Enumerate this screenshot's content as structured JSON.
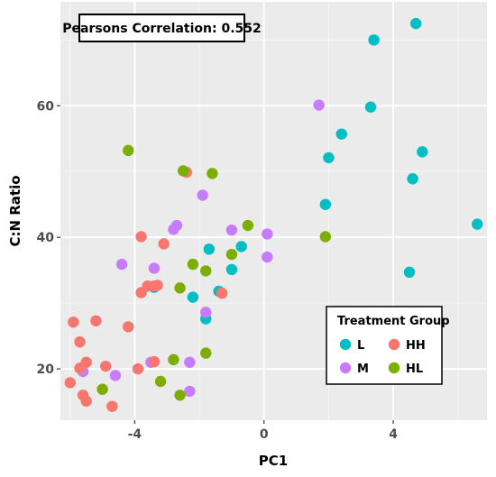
{
  "chart_data": {
    "type": "scatter",
    "annotation": "Pearsons Correlation: 0.552",
    "xlabel": "PC1",
    "ylabel": "C:N Ratio",
    "xlim": [
      -6.3,
      6.9
    ],
    "ylim": [
      12.2,
      75.8
    ],
    "x_ticks": [
      -4,
      0,
      4
    ],
    "x_tick_labels": [
      "-4",
      "0",
      "4"
    ],
    "y_ticks": [
      20,
      40,
      60
    ],
    "y_tick_labels": [
      "20",
      "40",
      "60"
    ],
    "grid": true,
    "legend": {
      "title": "Treatment Group",
      "placement": "bottom-right",
      "entries": [
        {
          "key": "L",
          "label": "L",
          "color": "#00BFC4"
        },
        {
          "key": "M",
          "label": "M",
          "color": "#C77CFF"
        },
        {
          "key": "HH",
          "label": "HH",
          "color": "#F8766D"
        },
        {
          "key": "HL",
          "label": "HL",
          "color": "#7CAE00"
        }
      ]
    },
    "series": [
      {
        "name": "L",
        "color": "#00BFC4",
        "points": [
          [
            4.7,
            72.5
          ],
          [
            3.4,
            70.0
          ],
          [
            3.3,
            59.8
          ],
          [
            2.4,
            55.7
          ],
          [
            2.0,
            52.1
          ],
          [
            4.9,
            53.0
          ],
          [
            4.6,
            48.9
          ],
          [
            1.9,
            45.0
          ],
          [
            6.6,
            42.0
          ],
          [
            4.5,
            34.7
          ],
          [
            -1.7,
            38.2
          ],
          [
            -0.7,
            38.6
          ],
          [
            -1.0,
            35.1
          ],
          [
            -3.4,
            32.4
          ],
          [
            -1.4,
            31.8
          ],
          [
            -2.2,
            30.9
          ],
          [
            -1.8,
            27.6
          ]
        ]
      },
      {
        "name": "M",
        "color": "#C77CFF",
        "points": [
          [
            1.7,
            60.1
          ],
          [
            -1.9,
            46.4
          ],
          [
            -2.8,
            41.2
          ],
          [
            -2.7,
            41.8
          ],
          [
            -1.0,
            41.1
          ],
          [
            0.1,
            40.5
          ],
          [
            0.1,
            37.0
          ],
          [
            -4.4,
            35.9
          ],
          [
            -3.4,
            35.3
          ],
          [
            -1.8,
            28.6
          ],
          [
            -3.5,
            21.0
          ],
          [
            -2.3,
            21.0
          ],
          [
            -4.6,
            19.0
          ],
          [
            -5.6,
            19.6
          ],
          [
            -2.3,
            16.6
          ]
        ]
      },
      {
        "name": "HH",
        "color": "#F8766D",
        "points": [
          [
            -2.4,
            49.9
          ],
          [
            -3.8,
            40.1
          ],
          [
            -3.1,
            39.0
          ],
          [
            -3.6,
            32.6
          ],
          [
            -3.4,
            32.6
          ],
          [
            -3.3,
            32.7
          ],
          [
            -3.8,
            31.6
          ],
          [
            -1.3,
            31.5
          ],
          [
            -5.9,
            27.1
          ],
          [
            -5.2,
            27.3
          ],
          [
            -4.2,
            26.4
          ],
          [
            -5.7,
            24.1
          ],
          [
            -3.4,
            21.1
          ],
          [
            -5.5,
            21.0
          ],
          [
            -3.9,
            20.0
          ],
          [
            -5.7,
            20.1
          ],
          [
            -4.9,
            20.4
          ],
          [
            -6.0,
            17.9
          ],
          [
            -5.6,
            16.0
          ],
          [
            -5.5,
            15.1
          ],
          [
            -4.7,
            14.3
          ]
        ]
      },
      {
        "name": "HL",
        "color": "#7CAE00",
        "points": [
          [
            -4.2,
            53.2
          ],
          [
            -2.5,
            50.1
          ],
          [
            -1.6,
            49.7
          ],
          [
            -0.5,
            41.8
          ],
          [
            -1.0,
            37.4
          ],
          [
            1.9,
            40.1
          ],
          [
            -2.2,
            35.9
          ],
          [
            -1.8,
            34.9
          ],
          [
            -2.6,
            32.3
          ],
          [
            -1.8,
            22.4
          ],
          [
            -2.8,
            21.4
          ],
          [
            -3.2,
            18.1
          ],
          [
            -5.0,
            16.9
          ],
          [
            -2.6,
            16.0
          ]
        ]
      }
    ]
  }
}
